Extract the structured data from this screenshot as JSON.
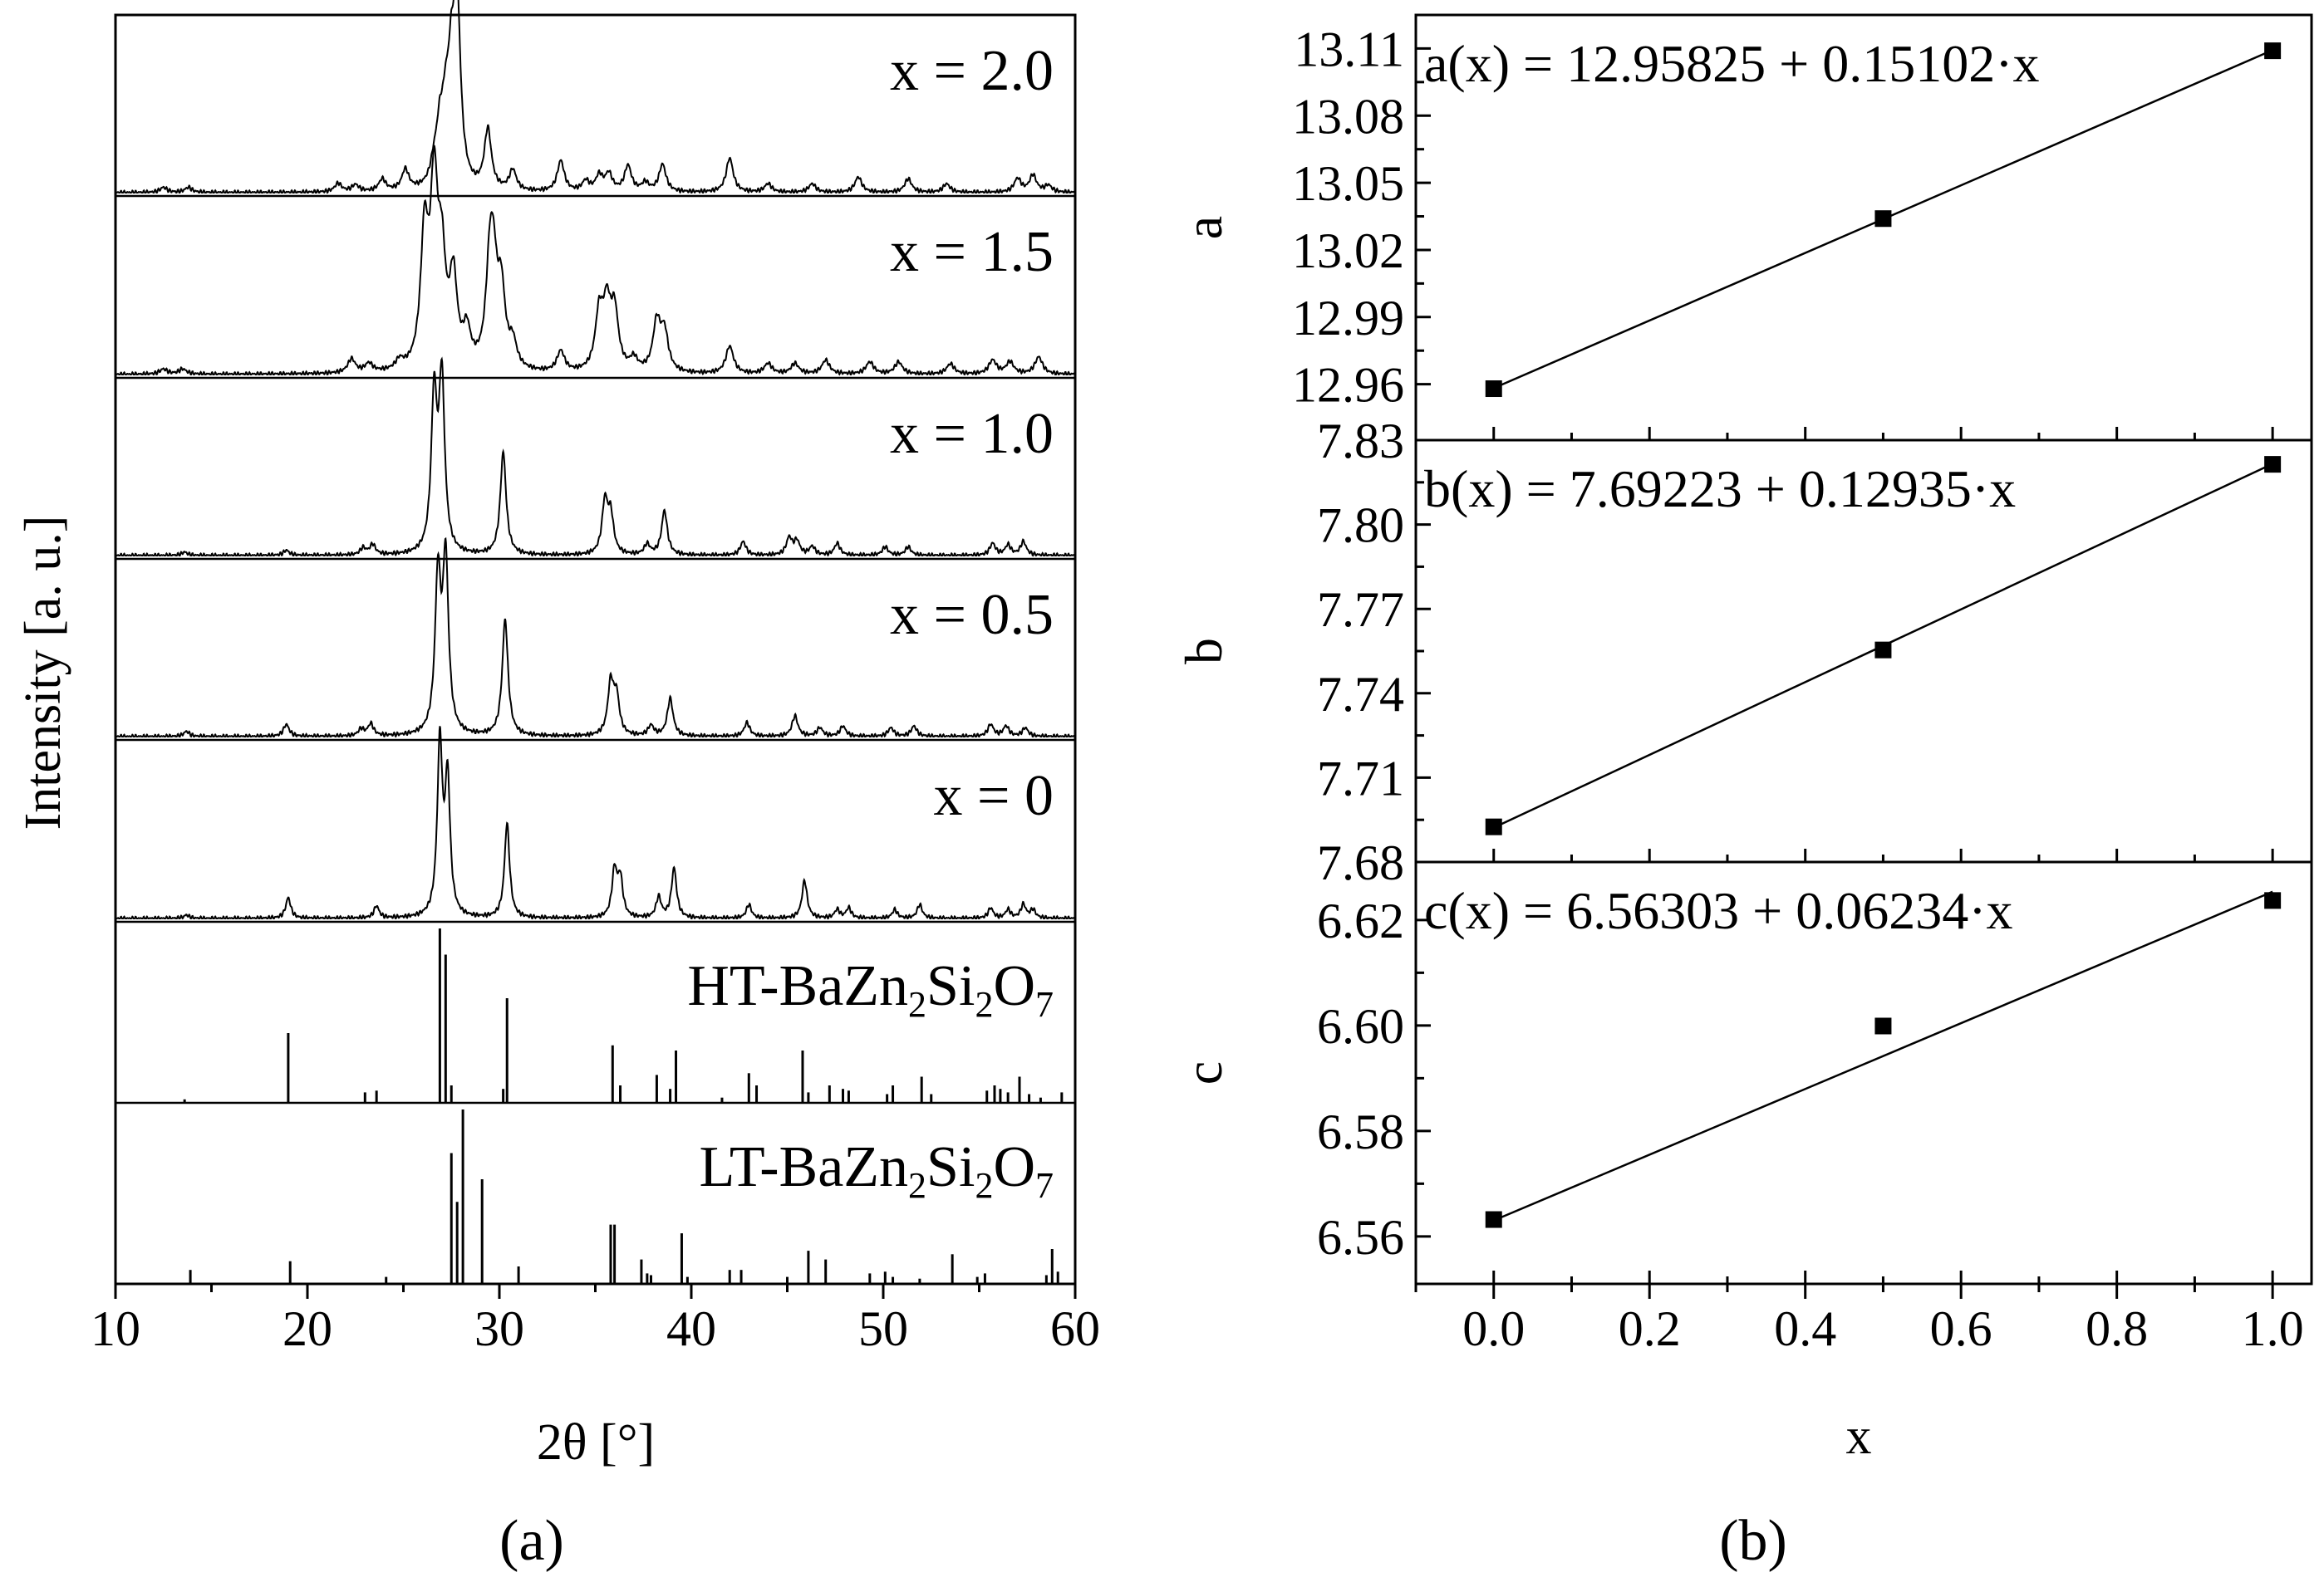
{
  "chart_data": [
    {
      "panel_label": "(a)",
      "type": "line",
      "xlabel": "2θ [°]",
      "ylabel": "Intensity [a. u.]",
      "xlim": [
        10,
        60
      ],
      "x_ticks": [
        "10",
        "20",
        "30",
        "40",
        "50",
        "60"
      ],
      "grid": false,
      "legend": "none",
      "series": [
        {
          "name": "x = 2.0",
          "kind": "profile",
          "width": 0.22,
          "peaks": [
            [
              12.5,
              0.03
            ],
            [
              13.8,
              0.03
            ],
            [
              21.6,
              0.05
            ],
            [
              22.5,
              0.04
            ],
            [
              23.9,
              0.07
            ],
            [
              25.1,
              0.12
            ],
            [
              26.6,
              0.1
            ],
            [
              26.9,
              0.28
            ],
            [
              27.2,
              0.33
            ],
            [
              27.5,
              0.55
            ],
            [
              27.8,
              1.0
            ],
            [
              29.4,
              0.35
            ],
            [
              30.7,
              0.12
            ],
            [
              33.2,
              0.18
            ],
            [
              34.5,
              0.06
            ],
            [
              35.2,
              0.09
            ],
            [
              35.7,
              0.1
            ],
            [
              36.7,
              0.15
            ],
            [
              37.6,
              0.05
            ],
            [
              38.5,
              0.16
            ],
            [
              42.0,
              0.2
            ],
            [
              44.0,
              0.05
            ],
            [
              46.3,
              0.05
            ],
            [
              48.7,
              0.09
            ],
            [
              51.3,
              0.08
            ],
            [
              53.3,
              0.05
            ],
            [
              57.0,
              0.08
            ],
            [
              57.8,
              0.1
            ],
            [
              58.6,
              0.04
            ]
          ]
        },
        {
          "name": "x = 1.5",
          "kind": "profile",
          "width": 0.24,
          "peaks": [
            [
              12.5,
              0.03
            ],
            [
              13.5,
              0.03
            ],
            [
              22.3,
              0.08
            ],
            [
              23.2,
              0.05
            ],
            [
              24.8,
              0.05
            ],
            [
              26.1,
              0.75
            ],
            [
              26.6,
              1.0
            ],
            [
              27.0,
              0.55
            ],
            [
              27.6,
              0.5
            ],
            [
              28.3,
              0.2
            ],
            [
              29.5,
              0.52
            ],
            [
              29.7,
              0.45
            ],
            [
              30.1,
              0.42
            ],
            [
              30.7,
              0.14
            ],
            [
              33.2,
              0.12
            ],
            [
              35.2,
              0.32
            ],
            [
              35.6,
              0.34
            ],
            [
              36.0,
              0.33
            ],
            [
              37.0,
              0.07
            ],
            [
              38.2,
              0.28
            ],
            [
              38.6,
              0.22
            ],
            [
              42.0,
              0.16
            ],
            [
              44.0,
              0.06
            ],
            [
              45.4,
              0.06
            ],
            [
              47.0,
              0.08
            ],
            [
              49.3,
              0.07
            ],
            [
              50.8,
              0.07
            ],
            [
              53.5,
              0.06
            ],
            [
              55.7,
              0.08
            ],
            [
              56.6,
              0.07
            ],
            [
              58.1,
              0.1
            ]
          ]
        },
        {
          "name": "x = 1.0",
          "kind": "profile",
          "width": 0.18,
          "peaks": [
            [
              13.6,
              0.02
            ],
            [
              18.9,
              0.03
            ],
            [
              22.9,
              0.04
            ],
            [
              23.4,
              0.06
            ],
            [
              26.6,
              0.9
            ],
            [
              27.0,
              1.0
            ],
            [
              30.2,
              0.6
            ],
            [
              35.5,
              0.3
            ],
            [
              35.8,
              0.22
            ],
            [
              37.7,
              0.06
            ],
            [
              38.6,
              0.26
            ],
            [
              42.7,
              0.08
            ],
            [
              45.1,
              0.1
            ],
            [
              45.5,
              0.08
            ],
            [
              46.3,
              0.05
            ],
            [
              47.6,
              0.07
            ],
            [
              50.1,
              0.05
            ],
            [
              51.3,
              0.05
            ],
            [
              55.7,
              0.07
            ],
            [
              56.5,
              0.06
            ],
            [
              57.3,
              0.08
            ]
          ]
        },
        {
          "name": "x = 0.5",
          "kind": "profile",
          "width": 0.18,
          "peaks": [
            [
              13.7,
              0.03
            ],
            [
              18.9,
              0.07
            ],
            [
              22.8,
              0.04
            ],
            [
              23.3,
              0.07
            ],
            [
              26.8,
              0.9
            ],
            [
              27.2,
              1.0
            ],
            [
              30.3,
              0.68
            ],
            [
              35.8,
              0.3
            ],
            [
              36.1,
              0.22
            ],
            [
              37.9,
              0.06
            ],
            [
              38.9,
              0.22
            ],
            [
              42.9,
              0.08
            ],
            [
              45.4,
              0.12
            ],
            [
              46.7,
              0.05
            ],
            [
              47.9,
              0.06
            ],
            [
              50.4,
              0.05
            ],
            [
              51.6,
              0.06
            ],
            [
              55.6,
              0.07
            ],
            [
              56.4,
              0.06
            ],
            [
              57.4,
              0.05
            ]
          ]
        },
        {
          "name": "x = 0",
          "kind": "profile",
          "width": 0.16,
          "peaks": [
            [
              13.7,
              0.02
            ],
            [
              19.0,
              0.12
            ],
            [
              23.6,
              0.07
            ],
            [
              26.9,
              1.0
            ],
            [
              27.3,
              0.78
            ],
            [
              30.4,
              0.55
            ],
            [
              36.0,
              0.27
            ],
            [
              36.3,
              0.22
            ],
            [
              38.3,
              0.12
            ],
            [
              39.1,
              0.29
            ],
            [
              43.0,
              0.08
            ],
            [
              45.9,
              0.22
            ],
            [
              47.6,
              0.05
            ],
            [
              48.2,
              0.06
            ],
            [
              50.6,
              0.05
            ],
            [
              51.9,
              0.08
            ],
            [
              55.6,
              0.06
            ],
            [
              56.5,
              0.05
            ],
            [
              57.3,
              0.08
            ],
            [
              57.8,
              0.05
            ]
          ]
        },
        {
          "name": "HT-BaZn₂Si₂O₇",
          "kind": "sticks",
          "sticks": [
            [
              13.6,
              0.02
            ],
            [
              19.0,
              0.4
            ],
            [
              23.0,
              0.06
            ],
            [
              23.6,
              0.07
            ],
            [
              26.9,
              1.0
            ],
            [
              27.2,
              0.85
            ],
            [
              27.5,
              0.1
            ],
            [
              30.2,
              0.08
            ],
            [
              30.4,
              0.6
            ],
            [
              35.9,
              0.33
            ],
            [
              36.3,
              0.1
            ],
            [
              38.2,
              0.16
            ],
            [
              38.9,
              0.08
            ],
            [
              39.2,
              0.3
            ],
            [
              41.6,
              0.03
            ],
            [
              43.0,
              0.17
            ],
            [
              43.4,
              0.1
            ],
            [
              45.8,
              0.3
            ],
            [
              46.1,
              0.06
            ],
            [
              47.2,
              0.1
            ],
            [
              47.9,
              0.08
            ],
            [
              48.2,
              0.07
            ],
            [
              50.2,
              0.05
            ],
            [
              50.5,
              0.1
            ],
            [
              52.0,
              0.15
            ],
            [
              52.5,
              0.05
            ],
            [
              55.4,
              0.07
            ],
            [
              55.8,
              0.1
            ],
            [
              56.1,
              0.08
            ],
            [
              56.5,
              0.06
            ],
            [
              57.1,
              0.15
            ],
            [
              57.6,
              0.05
            ],
            [
              58.2,
              0.03
            ],
            [
              59.3,
              0.06
            ]
          ]
        },
        {
          "name": "LT-BaZn₂Si₂O₇",
          "kind": "sticks",
          "sticks": [
            [
              13.9,
              0.08
            ],
            [
              19.1,
              0.13
            ],
            [
              24.1,
              0.04
            ],
            [
              27.5,
              0.75
            ],
            [
              27.8,
              0.47
            ],
            [
              28.1,
              1.0
            ],
            [
              29.1,
              0.6
            ],
            [
              31.0,
              0.1
            ],
            [
              35.8,
              0.34
            ],
            [
              36.0,
              0.34
            ],
            [
              37.4,
              0.14
            ],
            [
              37.7,
              0.06
            ],
            [
              37.9,
              0.05
            ],
            [
              39.5,
              0.29
            ],
            [
              39.8,
              0.04
            ],
            [
              42.0,
              0.08
            ],
            [
              42.6,
              0.08
            ],
            [
              45.0,
              0.04
            ],
            [
              46.1,
              0.19
            ],
            [
              47.0,
              0.14
            ],
            [
              49.3,
              0.06
            ],
            [
              50.1,
              0.07
            ],
            [
              50.5,
              0.04
            ],
            [
              51.9,
              0.03
            ],
            [
              53.6,
              0.17
            ],
            [
              54.9,
              0.04
            ],
            [
              55.3,
              0.06
            ],
            [
              58.5,
              0.05
            ],
            [
              58.8,
              0.2
            ],
            [
              59.1,
              0.07
            ]
          ]
        }
      ]
    },
    {
      "panel_label": "(b)",
      "type": "scatter",
      "x": [
        0.0,
        0.5,
        1.0
      ],
      "xlabel": "x",
      "xlim": [
        -0.1,
        1.05
      ],
      "x_ticks": [
        "0.0",
        "0.2",
        "0.4",
        "0.6",
        "0.8",
        "1.0"
      ],
      "grid": false,
      "legend": "none",
      "panels": [
        {
          "ylabel": "a",
          "equation": "a(x) = 12.95825 + 0.15102·x",
          "ylim": [
            12.935,
            13.125
          ],
          "y_ticks": [
            "12.96",
            "12.99",
            "13.02",
            "13.05",
            "13.08",
            "13.11"
          ],
          "values": [
            12.958,
            13.034,
            13.109
          ],
          "fit": {
            "intercept": 12.95825,
            "slope": 0.15102
          }
        },
        {
          "ylabel": "b",
          "equation": "b(x) = 7.69223 + 0.12935·x",
          "ylim": [
            7.68,
            7.83
          ],
          "y_ticks": [
            "7.68",
            "7.71",
            "7.74",
            "7.77",
            "7.80",
            "7.83"
          ],
          "values": [
            7.6925,
            7.7554,
            7.8214
          ],
          "fit": {
            "intercept": 7.69223,
            "slope": 0.12935
          }
        },
        {
          "ylabel": "c",
          "equation": "c(x) = 6.56303 + 0.06234·x",
          "ylim": [
            6.551,
            6.631
          ],
          "y_ticks": [
            "6.56",
            "6.58",
            "6.60",
            "6.62"
          ],
          "values": [
            6.5632,
            6.5999,
            6.6237
          ],
          "fit": {
            "intercept": 6.56303,
            "slope": 0.06234
          }
        }
      ]
    }
  ]
}
